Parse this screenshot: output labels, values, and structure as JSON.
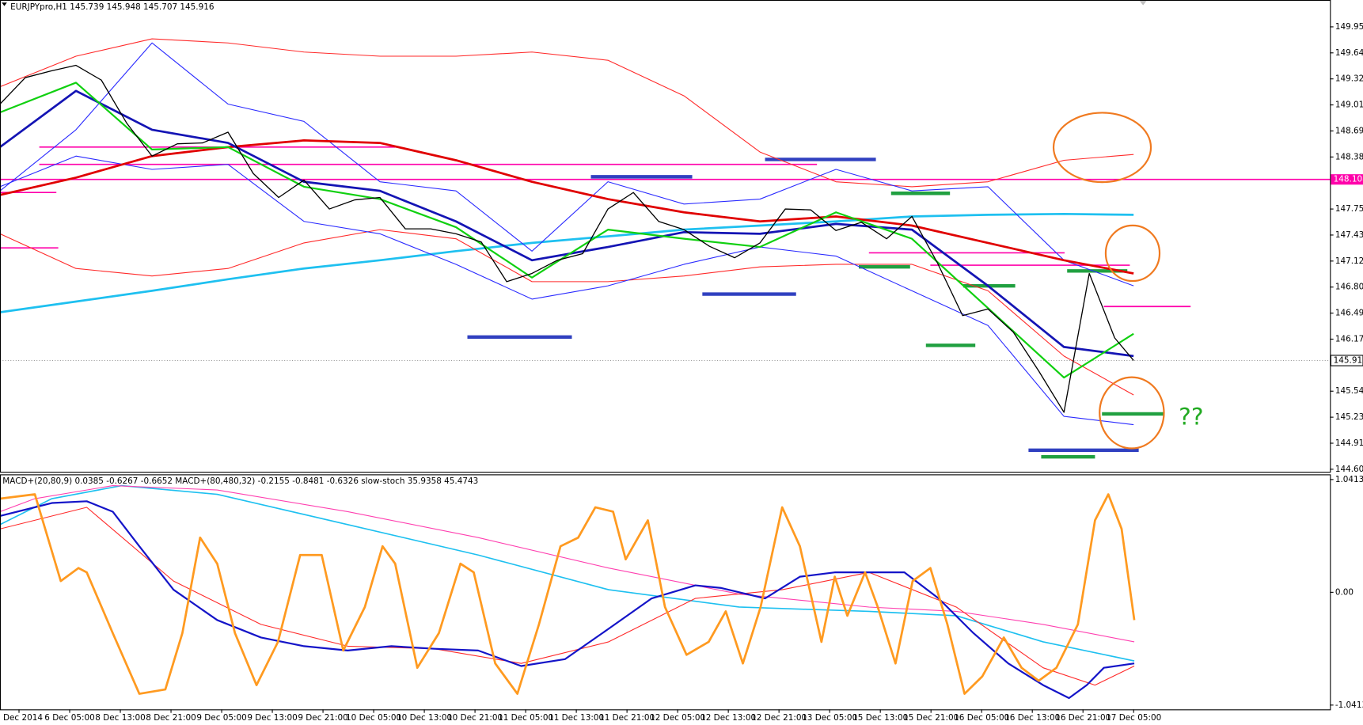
{
  "header": "EURJPYpro,H1  145.739 145.948 145.707 145.916",
  "annotation": "??",
  "chart_data": [
    {
      "type": "line",
      "xlim": [
        0,
        210
      ],
      "ylim": [
        144.58,
        150.28
      ],
      "yticks": [
        149.955,
        {
          "value": 149.64,
          "label": "149.640"
        },
        149.325,
        {
          "value": 149.01,
          "label": "149.010"
        },
        148.695,
        {
          "value": 148.38,
          "label": "148.380"
        },
        {
          "value": 147.75,
          "label": "147.750"
        },
        147.435,
        {
          "value": 147.12,
          "label": "147.120"
        },
        146.805,
        {
          "value": 146.49,
          "label": "146.490"
        },
        146.175,
        145.545,
        {
          "value": 145.23,
          "label": "145.230"
        },
        144.915,
        {
          "value": 144.6,
          "label": "144.600"
        }
      ],
      "current_price": 145.916,
      "series": [
        {
          "color": "#1ec0f0",
          "line_width": 2.5,
          "x": [
            0,
            12,
            24,
            36,
            48,
            60,
            72,
            84,
            96,
            108,
            120,
            132,
            144,
            156,
            168,
            179
          ],
          "values": [
            146.5,
            146.63,
            146.76,
            146.9,
            147.03,
            147.13,
            147.24,
            147.34,
            147.42,
            147.5,
            147.55,
            147.6,
            147.66,
            147.68,
            147.69,
            147.68
          ]
        },
        {
          "color": "#ff2a2a",
          "line_width": 1,
          "x": [
            0,
            12,
            24,
            36,
            48,
            60,
            72,
            84,
            96,
            108,
            120,
            132,
            144,
            156,
            168,
            179
          ],
          "values": [
            149.23,
            149.6,
            149.81,
            149.76,
            149.65,
            149.6,
            149.6,
            149.65,
            149.55,
            149.12,
            148.44,
            148.08,
            148.02,
            148.08,
            148.34,
            148.41
          ]
        },
        {
          "color": "#ff2a2a",
          "line_width": 1,
          "x": [
            0,
            12,
            24,
            36,
            48,
            60,
            72,
            84,
            96,
            108,
            120,
            132,
            144,
            156,
            168,
            179
          ],
          "values": [
            147.45,
            147.03,
            146.94,
            147.03,
            147.34,
            147.5,
            147.39,
            146.87,
            146.87,
            146.94,
            147.05,
            147.08,
            147.08,
            146.76,
            145.97,
            145.5
          ]
        },
        {
          "color": "#2a2aff",
          "line_width": 1,
          "x": [
            0,
            12,
            24,
            36,
            48,
            60,
            72,
            84,
            96,
            108,
            120,
            132,
            144,
            156,
            168,
            179
          ],
          "values": [
            147.97,
            148.71,
            149.76,
            149.02,
            148.81,
            148.08,
            147.97,
            147.24,
            148.08,
            147.81,
            147.87,
            148.23,
            147.97,
            148.02,
            147.13,
            146.82
          ]
        },
        {
          "color": "#2a2aff",
          "line_width": 1,
          "x": [
            0,
            12,
            24,
            36,
            48,
            60,
            72,
            84,
            96,
            108,
            120,
            132,
            144,
            156,
            168,
            179
          ],
          "values": [
            148.02,
            148.39,
            148.23,
            148.29,
            147.6,
            147.45,
            147.08,
            146.66,
            146.82,
            147.08,
            147.29,
            147.18,
            146.76,
            146.34,
            145.24,
            145.14
          ]
        },
        {
          "color": "#e00000",
          "line_width": 2.5,
          "x": [
            0,
            12,
            24,
            36,
            48,
            60,
            72,
            84,
            96,
            108,
            120,
            132,
            144,
            156,
            168,
            179
          ],
          "values": [
            147.92,
            148.13,
            148.39,
            148.5,
            148.58,
            148.55,
            148.34,
            148.08,
            147.87,
            147.71,
            147.6,
            147.66,
            147.55,
            147.34,
            147.13,
            146.97
          ]
        },
        {
          "color": "#1414b4",
          "line_width": 2.5,
          "x": [
            0,
            12,
            24,
            36,
            48,
            60,
            72,
            84,
            96,
            108,
            120,
            132,
            144,
            156,
            168,
            179
          ],
          "values": [
            148.5,
            149.18,
            148.71,
            148.55,
            148.08,
            147.97,
            147.6,
            147.13,
            147.29,
            147.47,
            147.45,
            147.57,
            147.5,
            146.82,
            146.08,
            145.97
          ]
        },
        {
          "color": "#10d010",
          "line_width": 2,
          "x": [
            0,
            12,
            24,
            36,
            48,
            60,
            72,
            84,
            96,
            108,
            120,
            132,
            144,
            156,
            168,
            179
          ],
          "values": [
            148.92,
            149.28,
            148.47,
            148.5,
            148.02,
            147.87,
            147.53,
            146.92,
            147.5,
            147.39,
            147.29,
            147.71,
            147.39,
            146.55,
            145.71,
            146.24
          ]
        },
        {
          "color": "#000000",
          "line_width": 1.2,
          "x": [
            0,
            4,
            8,
            12,
            16,
            20,
            24,
            28,
            32,
            36,
            40,
            44,
            48,
            52,
            56,
            60,
            64,
            68,
            72,
            76,
            80,
            84,
            88,
            92,
            96,
            100,
            104,
            108,
            112,
            116,
            120,
            124,
            128,
            132,
            136,
            140,
            144,
            148,
            152,
            156,
            160,
            164,
            168,
            172,
            176,
            179
          ],
          "values": [
            149.02,
            149.34,
            149.42,
            149.49,
            149.31,
            148.79,
            148.39,
            148.54,
            148.55,
            148.68,
            148.18,
            147.89,
            148.1,
            147.75,
            147.86,
            147.89,
            147.51,
            147.51,
            147.45,
            147.35,
            146.87,
            146.97,
            147.13,
            147.21,
            147.75,
            147.95,
            147.6,
            147.5,
            147.3,
            147.16,
            147.34,
            147.75,
            147.74,
            147.49,
            147.59,
            147.39,
            147.66,
            147.1,
            146.46,
            146.54,
            146.26,
            145.79,
            145.29,
            146.97,
            146.19,
            145.916
          ]
        }
      ],
      "levels": [
        {
          "value": 148.5,
          "x": [
            6.2,
            62.4
          ],
          "color": "#ff00aa"
        },
        {
          "value": 148.29,
          "x": [
            6.2,
            129
          ],
          "color": "#ff00aa"
        },
        {
          "value": 148.108,
          "x": [
            0,
            210
          ],
          "color": "#ff00aa",
          "tagged": true
        },
        {
          "value": 147.95,
          "x": [
            0,
            8.9
          ],
          "color": "#ff00aa"
        },
        {
          "value": 147.28,
          "x": [
            0,
            9.2
          ],
          "color": "#ff00aa"
        },
        {
          "value": 147.22,
          "x": [
            137.2,
            168.1
          ],
          "color": "#ff00aa"
        },
        {
          "value": 147.07,
          "x": [
            146.9,
            178.4
          ],
          "color": "#ff00aa"
        },
        {
          "value": 146.57,
          "x": [
            174.3,
            188
          ],
          "color": "#ff00aa"
        },
        {
          "value": 148.35,
          "x": [
            120.8,
            138.3
          ],
          "color": "#3040c0"
        },
        {
          "value": 148.14,
          "x": [
            93.3,
            109.3
          ],
          "color": "#3040c0"
        },
        {
          "value": 146.72,
          "x": [
            110.9,
            125.7
          ],
          "color": "#3040c0"
        },
        {
          "value": 146.2,
          "x": [
            73.8,
            90.3
          ],
          "color": "#3040c0"
        },
        {
          "value": 144.83,
          "x": [
            162.4,
            179.8
          ],
          "color": "#3040c0"
        },
        {
          "value": 147.94,
          "x": [
            140.7,
            150
          ],
          "color": "#20a040"
        },
        {
          "value": 147.05,
          "x": [
            135.6,
            143.7
          ],
          "color": "#20a040"
        },
        {
          "value": 146.82,
          "x": [
            152.1,
            160.3
          ],
          "color": "#20a040"
        },
        {
          "value": 147.0,
          "x": [
            168.5,
            178
          ],
          "color": "#20a040"
        },
        {
          "value": 146.1,
          "x": [
            146.2,
            154
          ],
          "color": "#20a040"
        },
        {
          "value": 145.27,
          "x": [
            174,
            183.9
          ],
          "color": "#20a040"
        },
        {
          "value": 144.75,
          "x": [
            164.4,
            172.9
          ],
          "color": "#20a040"
        }
      ]
    },
    {
      "type": "line",
      "title": "MACD+(20,80,9) 0.0385 -0.6267 -0.6652  MACD+(80,480,32) -0.2155 -0.8481 -0.6326  slow-stoch 35.9358 45.4743",
      "xlim": [
        0,
        210
      ],
      "ylim": [
        -1.081,
        1.081
      ],
      "yticks": [
        1.0413,
        {
          "value": 0,
          "label": "0.00"
        },
        -1.0413
      ],
      "xticks": [
        {
          "value": 3,
          "label": "5 Dec 2014"
        },
        {
          "value": 11,
          "label": "6 Dec 05:00"
        },
        {
          "value": 19,
          "label": "8 Dec 13:00"
        },
        {
          "value": 27,
          "label": "8 Dec 21:00"
        },
        {
          "value": 35,
          "label": "9 Dec 05:00"
        },
        {
          "value": 43,
          "label": "9 Dec 13:00"
        },
        {
          "value": 51,
          "label": "9 Dec 21:00"
        },
        {
          "value": 59,
          "label": "10 Dec 05:00"
        },
        {
          "value": 67,
          "label": "10 Dec 13:00"
        },
        {
          "value": 75,
          "label": "10 Dec 21:00"
        },
        {
          "value": 83,
          "label": "11 Dec 05:00"
        },
        {
          "value": 91,
          "label": "11 Dec 13:00"
        },
        {
          "value": 99,
          "label": "11 Dec 21:00"
        },
        {
          "value": 107,
          "label": "12 Dec 05:00"
        },
        {
          "value": 115,
          "label": "12 Dec 13:00"
        },
        {
          "value": 123,
          "label": "12 Dec 21:00"
        },
        {
          "value": 131,
          "label": "13 Dec 05:00"
        },
        {
          "value": 139,
          "label": "15 Dec 13:00"
        },
        {
          "value": 147,
          "label": "15 Dec 21:00"
        },
        {
          "value": 155,
          "label": "16 Dec 05:00"
        },
        {
          "value": 163,
          "label": "16 Dec 13:00"
        },
        {
          "value": 171,
          "label": "16 Dec 21:00"
        },
        {
          "value": 179,
          "label": "17 Dec 05:00"
        }
      ],
      "series": [
        {
          "color": "#1ec0f0",
          "line_width": 1.5,
          "x": [
            0,
            8.2,
            19.2,
            34.3,
            54.9,
            75.5,
            96.1,
            116.7,
            137.2,
            151,
            164.7,
            179.1
          ],
          "values": [
            0.625,
            0.865,
            0.985,
            0.905,
            0.625,
            0.344,
            0.024,
            -0.136,
            -0.176,
            -0.216,
            -0.457,
            -0.633
          ]
        },
        {
          "color": "#ff40b0",
          "line_width": 1,
          "x": [
            0,
            5.5,
            17.8,
            34.3,
            54.9,
            75.5,
            96.1,
            116.7,
            137.2,
            151,
            164.7,
            179.1
          ],
          "values": [
            0.745,
            0.865,
            0.985,
            0.945,
            0.745,
            0.505,
            0.224,
            -0.016,
            -0.136,
            -0.176,
            -0.296,
            -0.457
          ]
        },
        {
          "color": "#ff2a2a",
          "line_width": 1,
          "x": [
            0,
            13.7,
            27.4,
            41.2,
            54.9,
            68.6,
            82.3,
            96.1,
            109.8,
            123.5,
            137.2,
            151,
            164.7,
            172.9,
            179.1
          ],
          "values": [
            0.585,
            0.785,
            0.104,
            -0.296,
            -0.497,
            -0.521,
            -0.657,
            -0.457,
            -0.056,
            0.024,
            0.184,
            -0.136,
            -0.697,
            -0.857,
            -0.681
          ]
        },
        {
          "color": "#1414c8",
          "line_width": 2,
          "x": [
            0,
            8.2,
            13.7,
            17.8,
            22,
            27.4,
            34.3,
            41.2,
            48,
            54.9,
            61.8,
            68.6,
            75.5,
            82.3,
            89.2,
            96.1,
            102.9,
            109.8,
            113.9,
            120.8,
            126.3,
            131.8,
            137.2,
            142.8,
            148.2,
            153.7,
            159.2,
            164.7,
            168.8,
            171.6,
            174.3,
            179.1
          ],
          "values": [
            0.705,
            0.825,
            0.841,
            0.745,
            0.425,
            0.024,
            -0.256,
            -0.417,
            -0.497,
            -0.537,
            -0.497,
            -0.521,
            -0.537,
            -0.681,
            -0.617,
            -0.336,
            -0.056,
            0.064,
            0.04,
            -0.056,
            0.144,
            0.184,
            0.184,
            0.184,
            -0.056,
            -0.376,
            -0.657,
            -0.857,
            -0.977,
            -0.857,
            -0.697,
            -0.657
          ]
        },
        {
          "color": "#ff9a20",
          "line_width": 2.5,
          "x": [
            0,
            5.5,
            9.6,
            12.4,
            13.7,
            17.8,
            22,
            26.1,
            28.8,
            31.6,
            34.3,
            37.1,
            40.5,
            43.9,
            47.4,
            50.8,
            54.2,
            57.6,
            60.4,
            62.4,
            65.9,
            69.3,
            72.7,
            74.8,
            78.2,
            81.7,
            85.1,
            88.5,
            91.3,
            94,
            96.8,
            98.8,
            102.3,
            105,
            108.4,
            111.9,
            114.6,
            117.3,
            120.1,
            123.5,
            126.3,
            129.7,
            131.8,
            133.8,
            136.6,
            138.6,
            141.4,
            144.1,
            146.9,
            149.6,
            152.3,
            155.1,
            158.5,
            161.3,
            164,
            166.8,
            170.2,
            172.9,
            175,
            177.1,
            179.1
          ],
          "values": [
            0.865,
            0.905,
            0.104,
            0.224,
            0.184,
            -0.376,
            -0.937,
            -0.897,
            -0.376,
            0.505,
            0.264,
            -0.376,
            -0.857,
            -0.457,
            0.344,
            0.344,
            -0.537,
            -0.136,
            0.425,
            0.264,
            -0.697,
            -0.376,
            0.264,
            0.184,
            -0.657,
            -0.937,
            -0.296,
            0.425,
            0.505,
            0.785,
            0.745,
            0.304,
            0.665,
            -0.136,
            -0.577,
            -0.457,
            -0.176,
            -0.657,
            -0.136,
            0.785,
            0.425,
            -0.457,
            0.144,
            -0.216,
            0.184,
            -0.136,
            -0.657,
            0.104,
            0.224,
            -0.296,
            -0.937,
            -0.777,
            -0.417,
            -0.697,
            -0.817,
            -0.697,
            -0.296,
            0.665,
            0.905,
            0.585,
            -0.256
          ]
        }
      ]
    }
  ]
}
